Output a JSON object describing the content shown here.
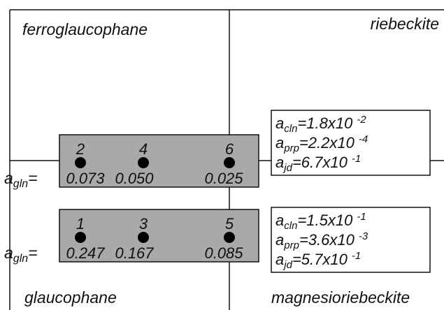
{
  "quadrants": {
    "top_left": "ferroglaucophane",
    "top_right": "riebeckite",
    "bottom_left": "glaucophane",
    "bottom_right": "magnesioriebeckite"
  },
  "rows": [
    {
      "symbol": "a",
      "subscript": "gln",
      "suffix": "=",
      "points": [
        {
          "id": "2",
          "value": "0.073"
        },
        {
          "id": "4",
          "value": "0.050"
        },
        {
          "id": "6",
          "value": "0.025"
        }
      ]
    },
    {
      "symbol": "a",
      "subscript": "gln",
      "suffix": "=",
      "points": [
        {
          "id": "1",
          "value": "0.247"
        },
        {
          "id": "3",
          "value": "0.167"
        },
        {
          "id": "5",
          "value": "0.085"
        }
      ]
    }
  ],
  "activity_boxes": [
    {
      "entries": [
        {
          "symbol": "a",
          "subscript": "cln",
          "value": "=1.8x10",
          "exponent": "-2"
        },
        {
          "symbol": "a",
          "subscript": "prp",
          "value": "=2.2x10",
          "exponent": "-4"
        },
        {
          "symbol": "a",
          "subscript": "jd",
          "value": "=6.7x10",
          "exponent": "-1"
        }
      ]
    },
    {
      "entries": [
        {
          "symbol": "a",
          "subscript": "cln",
          "value": "=1.5x10",
          "exponent": "-1"
        },
        {
          "symbol": "a",
          "subscript": "prp",
          "value": "=3.6x10",
          "exponent": "-3"
        },
        {
          "symbol": "a",
          "subscript": "jd",
          "value": "=5.7x10",
          "exponent": "-1"
        }
      ]
    }
  ]
}
